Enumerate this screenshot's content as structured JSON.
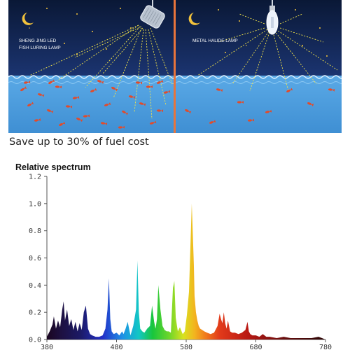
{
  "illustration": {
    "left_lamp_label_line1": "SHENG JING LED",
    "left_lamp_label_line2": "FISH LURING LAMP",
    "right_lamp_label": "METAL HALIDE LAMP",
    "colors": {
      "sky": "#0d1d40",
      "sea": "#5aa9e6",
      "divider": "#e8743b",
      "fish": "#e24b2a",
      "moon": "#f2c23c"
    },
    "icons": [
      "moon-icon",
      "led-lamp-icon",
      "metal-halide-bulb-icon",
      "fish-icon",
      "star-icon"
    ]
  },
  "caption": "Save up to 30% of fuel cost",
  "chart_title": "Relative spectrum",
  "chart_data": {
    "type": "area",
    "title": "Relative spectrum",
    "xlabel": "",
    "ylabel": "",
    "xlim": [
      380,
      780
    ],
    "ylim": [
      0,
      1.2
    ],
    "xticks": [
      "380",
      "480",
      "580",
      "680",
      "780"
    ],
    "yticks": [
      "0.0",
      "0.2",
      "0.4",
      "0.6",
      "0.8",
      "1.0",
      "1.2"
    ],
    "grid": false,
    "fill": "wavelength-colored spectrum",
    "series": [
      {
        "x": [
          380,
          384,
          388,
          390,
          393,
          396,
          399,
          402,
          404,
          406,
          409,
          412,
          415,
          418,
          421,
          424,
          427,
          430,
          433,
          436,
          439,
          442,
          445,
          450,
          455,
          460,
          464,
          467,
          469,
          471,
          473,
          476,
          480,
          484,
          488,
          490,
          493,
          496,
          500,
          504,
          508,
          510,
          512,
          514,
          517,
          520,
          524,
          528,
          531,
          534,
          536,
          538,
          540,
          543,
          546,
          549,
          552,
          555,
          558,
          561,
          563,
          565,
          568,
          571,
          575,
          578,
          581,
          584,
          588,
          591,
          592,
          594,
          596,
          598,
          600,
          603,
          606,
          610,
          615,
          620,
          625,
          628,
          630,
          632,
          634,
          636,
          638,
          640,
          643,
          646,
          650,
          655,
          660,
          665,
          668,
          670,
          672,
          675,
          680,
          685,
          690,
          695,
          700,
          710,
          720,
          730,
          740,
          750,
          760,
          770,
          775,
          780
        ],
        "y": [
          0.02,
          0.06,
          0.11,
          0.17,
          0.08,
          0.14,
          0.09,
          0.22,
          0.28,
          0.14,
          0.22,
          0.1,
          0.15,
          0.07,
          0.13,
          0.06,
          0.12,
          0.07,
          0.2,
          0.25,
          0.08,
          0.04,
          0.03,
          0.02,
          0.02,
          0.03,
          0.08,
          0.22,
          0.45,
          0.15,
          0.06,
          0.04,
          0.05,
          0.03,
          0.06,
          0.04,
          0.08,
          0.13,
          0.03,
          0.1,
          0.22,
          0.58,
          0.2,
          0.08,
          0.06,
          0.05,
          0.08,
          0.1,
          0.25,
          0.13,
          0.08,
          0.15,
          0.4,
          0.22,
          0.1,
          0.07,
          0.06,
          0.06,
          0.05,
          0.38,
          0.43,
          0.16,
          0.06,
          0.09,
          0.04,
          0.06,
          0.18,
          0.35,
          1.0,
          0.55,
          0.32,
          0.2,
          0.14,
          0.1,
          0.08,
          0.07,
          0.06,
          0.05,
          0.04,
          0.05,
          0.1,
          0.19,
          0.15,
          0.12,
          0.2,
          0.12,
          0.08,
          0.14,
          0.06,
          0.05,
          0.05,
          0.04,
          0.05,
          0.07,
          0.13,
          0.06,
          0.04,
          0.03,
          0.03,
          0.02,
          0.04,
          0.02,
          0.02,
          0.01,
          0.02,
          0.01,
          0.01,
          0.01,
          0.01,
          0.02,
          0.01,
          0.0
        ]
      }
    ]
  }
}
